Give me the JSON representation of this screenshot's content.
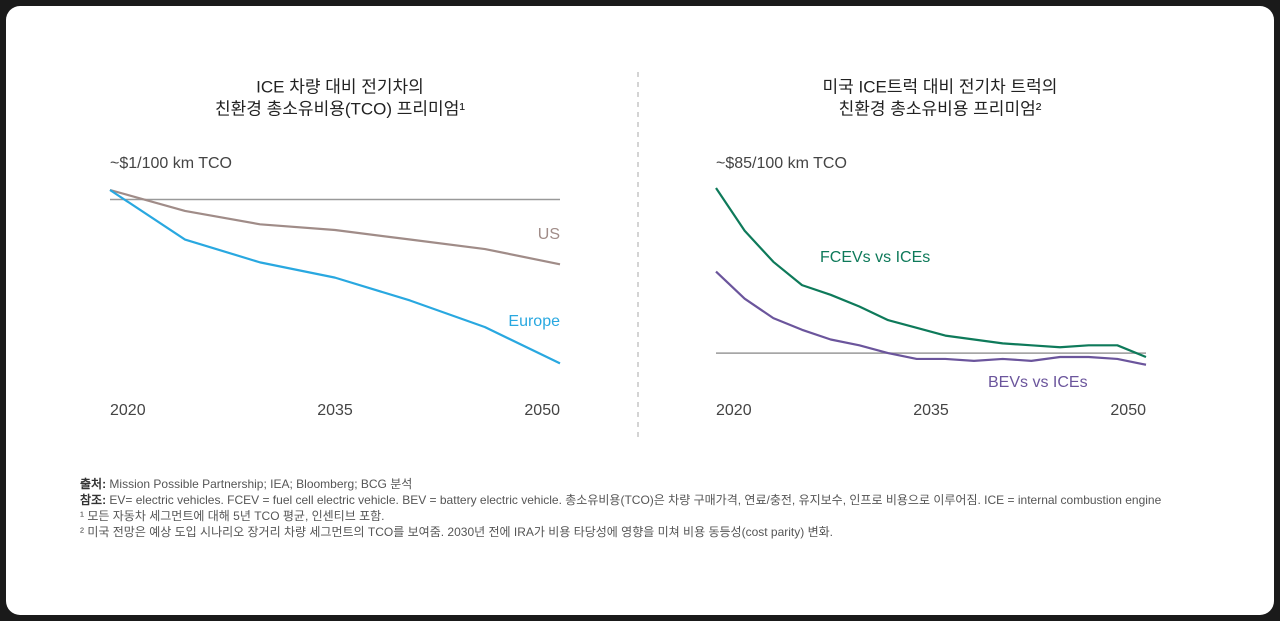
{
  "chart_data": [
    {
      "type": "line",
      "title": [
        "ICE 차량 대비 전기차의",
        "친환경 총소유비용(TCO) 프리미엄¹"
      ],
      "y_label": "~$1/100 km TCO",
      "x": [
        2020,
        2025,
        2030,
        2035,
        2040,
        2045,
        2050
      ],
      "xlim": [
        2020,
        2050
      ],
      "xticks": [
        2020,
        2035,
        2050
      ],
      "ylim": [
        0,
        1.05
      ],
      "reference_line": 1,
      "reference_color": "#999999",
      "series": [
        {
          "name": "US",
          "color": "#a08c88",
          "values": [
            1.05,
            0.94,
            0.87,
            0.84,
            0.79,
            0.74,
            0.66
          ]
        },
        {
          "name": "Europe",
          "color": "#29a8e0",
          "values": [
            1.05,
            0.79,
            0.67,
            0.59,
            0.47,
            0.33,
            0.14
          ]
        }
      ]
    },
    {
      "type": "line",
      "title": [
        "미국 ICE트럭 대비 전기차 트럭의",
        "친환경 총소유비용 프리미엄²"
      ],
      "y_label": "~$85/100 km TCO",
      "x": [
        2020,
        2022,
        2024,
        2026,
        2028,
        2030,
        2032,
        2034,
        2036,
        2038,
        2040,
        2042,
        2044,
        2046,
        2048,
        2050
      ],
      "xlim": [
        2020,
        2050
      ],
      "xticks": [
        2020,
        2035,
        2050
      ],
      "ylim": [
        -19,
        85
      ],
      "reference_line": 0,
      "reference_color": "#999999",
      "series": [
        {
          "name": "FCEVs vs ICEs",
          "color": "#0e7a5a",
          "values": [
            85,
            63,
            47,
            35,
            30,
            24,
            17,
            13,
            9,
            7,
            5,
            4,
            3,
            4,
            4,
            -2
          ]
        },
        {
          "name": "BEVs vs ICEs",
          "color": "#6b559c",
          "values": [
            42,
            28,
            18,
            12,
            7,
            4,
            0,
            -3,
            -3,
            -4,
            -3,
            -4,
            -2,
            -2,
            -3,
            -6
          ]
        }
      ]
    }
  ],
  "notes": {
    "source_label": "출처:",
    "source": " Mission Possible Partnership; IEA; Bloomberg; BCG 분석",
    "note_label": "참조:",
    "note": " EV= electric vehicles. FCEV = fuel cell electric vehicle. BEV = battery electric vehicle. 총소유비용(TCO)은 차량 구매가격, 연료/충전, 유지보수, 인프로 비용으로 이루어짐. ICE = internal combustion engine",
    "footnote1": "¹ 모든 자동차 세그먼트에 대해 5년 TCO 평균, 인센티브 포함.",
    "footnote2": "² 미국 전망은 예상 도입 시나리오 장거리 차량 세그먼트의 TCO를 보여줌. 2030년 전에 IRA가 비용 타당성에 영향을 미쳐 비용 동등성(cost parity) 변화."
  }
}
